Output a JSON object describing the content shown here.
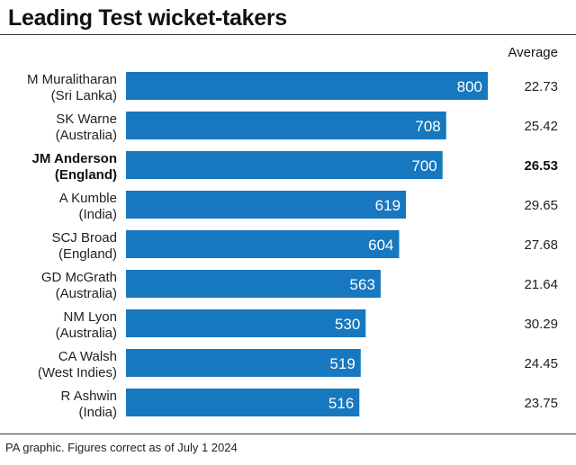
{
  "title": "Leading Test wicket-takers",
  "column_header": "Average",
  "footer": "PA graphic. Figures correct as of July 1 2024",
  "colors": {
    "bar": "#1777bf",
    "value_text": "#ffffff",
    "rule": "#333333"
  },
  "chart_data": {
    "type": "bar",
    "orientation": "horizontal",
    "title": "Leading Test wicket-takers",
    "categories": [
      "M Muralitharan (Sri Lanka)",
      "SK Warne (Australia)",
      "JM Anderson (England)",
      "A Kumble (India)",
      "SCJ Broad (England)",
      "GD McGrath (Australia)",
      "NM Lyon (Australia)",
      "CA Walsh (West Indies)",
      "R Ashwin (India)"
    ],
    "values": [
      800,
      708,
      700,
      619,
      604,
      563,
      530,
      519,
      516
    ],
    "xlim": [
      0,
      800
    ],
    "grid": false,
    "legend": "none",
    "highlighted": "JM Anderson (England)",
    "rows": [
      {
        "name": "M Muralitharan",
        "country": "(Sri Lanka)",
        "wickets": 800,
        "average": "22.73",
        "highlight": false
      },
      {
        "name": "SK Warne",
        "country": "(Australia)",
        "wickets": 708,
        "average": "25.42",
        "highlight": false
      },
      {
        "name": "JM Anderson",
        "country": "(England)",
        "wickets": 700,
        "average": "26.53",
        "highlight": true
      },
      {
        "name": "A Kumble",
        "country": "(India)",
        "wickets": 619,
        "average": "29.65",
        "highlight": false
      },
      {
        "name": "SCJ Broad",
        "country": "(England)",
        "wickets": 604,
        "average": "27.68",
        "highlight": false
      },
      {
        "name": "GD McGrath",
        "country": "(Australia)",
        "wickets": 563,
        "average": "21.64",
        "highlight": false
      },
      {
        "name": "NM Lyon",
        "country": "(Australia)",
        "wickets": 530,
        "average": "30.29",
        "highlight": false
      },
      {
        "name": "CA Walsh",
        "country": "(West Indies)",
        "wickets": 519,
        "average": "24.45",
        "highlight": false
      },
      {
        "name": "R Ashwin",
        "country": "(India)",
        "wickets": 516,
        "average": "23.75",
        "highlight": false
      }
    ]
  }
}
